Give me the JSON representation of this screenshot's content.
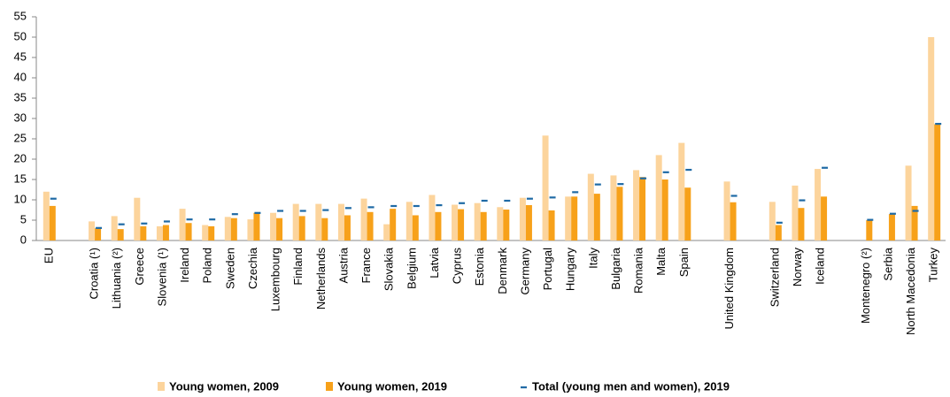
{
  "chart_data": {
    "type": "bar",
    "categories": [
      "EU",
      null,
      "Croatia (¹)",
      "Lithuania (²)",
      "Greece",
      "Slovenia (¹)",
      "Ireland",
      "Poland",
      "Sweden",
      "Czechia",
      "Luxembourg",
      "Finland",
      "Netherlands",
      "Austria",
      "France",
      "Slovakia",
      "Belgium",
      "Latvia",
      "Cyprus",
      "Estonia",
      "Denmark",
      "Germany",
      "Portugal",
      "Hungary",
      "Italy",
      "Bulgaria",
      "Romania",
      "Malta",
      "Spain",
      null,
      "United Kingdom",
      null,
      "Switzerland",
      "Norway",
      "Iceland",
      null,
      "Montenegro (²)",
      "Serbia",
      "North Macedonia",
      "Turkey"
    ],
    "series": [
      {
        "name": "Young women, 2009",
        "color": "#fcd49c",
        "values": [
          12,
          null,
          4.7,
          6.0,
          10.5,
          3.5,
          7.8,
          3.8,
          5.8,
          5.2,
          6.8,
          9.0,
          9.0,
          9.0,
          10.3,
          4.0,
          9.5,
          11.2,
          8.8,
          9.2,
          8.2,
          10.5,
          25.8,
          10.8,
          16.4,
          16.0,
          17.3,
          21.0,
          24.0,
          null,
          14.5,
          null,
          9.5,
          13.5,
          17.6,
          null,
          null,
          null,
          18.4,
          50.0
        ]
      },
      {
        "name": "Young women, 2019",
        "color": "#f7a11a",
        "values": [
          8.5,
          null,
          3.0,
          2.8,
          3.5,
          3.8,
          4.3,
          3.5,
          5.5,
          6.8,
          5.5,
          6.0,
          5.5,
          6.2,
          7.0,
          7.8,
          6.2,
          7.0,
          7.7,
          7.0,
          7.6,
          8.7,
          7.4,
          10.8,
          11.5,
          13.2,
          15.6,
          15.0,
          13.0,
          null,
          9.4,
          null,
          3.8,
          8.0,
          10.8,
          null,
          5.0,
          6.5,
          8.5,
          28.6
        ]
      },
      {
        "name": "Total (young men and women), 2019",
        "color": "#1f6aa5",
        "marker": "dash",
        "values": [
          10.3,
          null,
          3.1,
          4.0,
          4.2,
          4.7,
          5.2,
          5.2,
          6.5,
          6.8,
          7.3,
          7.3,
          7.5,
          8.0,
          8.2,
          8.5,
          8.5,
          8.7,
          9.2,
          9.8,
          9.8,
          10.3,
          10.6,
          11.9,
          13.8,
          13.9,
          15.3,
          16.8,
          17.4,
          null,
          11.0,
          null,
          4.4,
          9.9,
          17.9,
          null,
          5.1,
          6.6,
          7.3,
          28.7
        ]
      }
    ],
    "ylim": [
      0,
      55
    ],
    "yticks": [
      0,
      5,
      10,
      15,
      20,
      25,
      30,
      35,
      40,
      45,
      50,
      55
    ],
    "grid": false
  }
}
